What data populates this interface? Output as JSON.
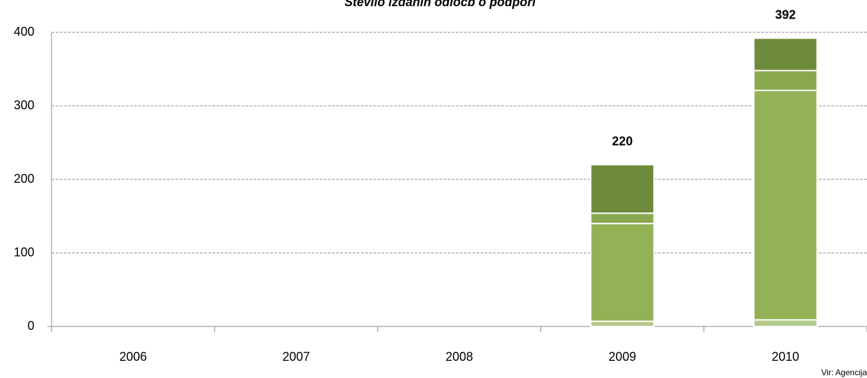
{
  "chart_data": {
    "type": "stacked_bar",
    "title": "Število izdanih odločb o podpori",
    "source": "Vir: Agencija",
    "categories": [
      "2006",
      "2007",
      "2008",
      "2009",
      "2010"
    ],
    "series": [
      {
        "color": "#b3c98a",
        "values": [
          null,
          null,
          null,
          7,
          9
        ]
      },
      {
        "color": "#93b155",
        "values": [
          null,
          null,
          null,
          133,
          312
        ]
      },
      {
        "color": "#89a84f",
        "values": [
          null,
          null,
          null,
          14,
          27
        ]
      },
      {
        "color": "#6e8a3b",
        "values": [
          null,
          null,
          null,
          66,
          44
        ]
      }
    ],
    "totals": [
      null,
      null,
      null,
      220,
      392
    ],
    "ylim": [
      0,
      400
    ],
    "yticks": [
      0,
      100,
      200,
      300,
      400
    ],
    "grid": true
  }
}
